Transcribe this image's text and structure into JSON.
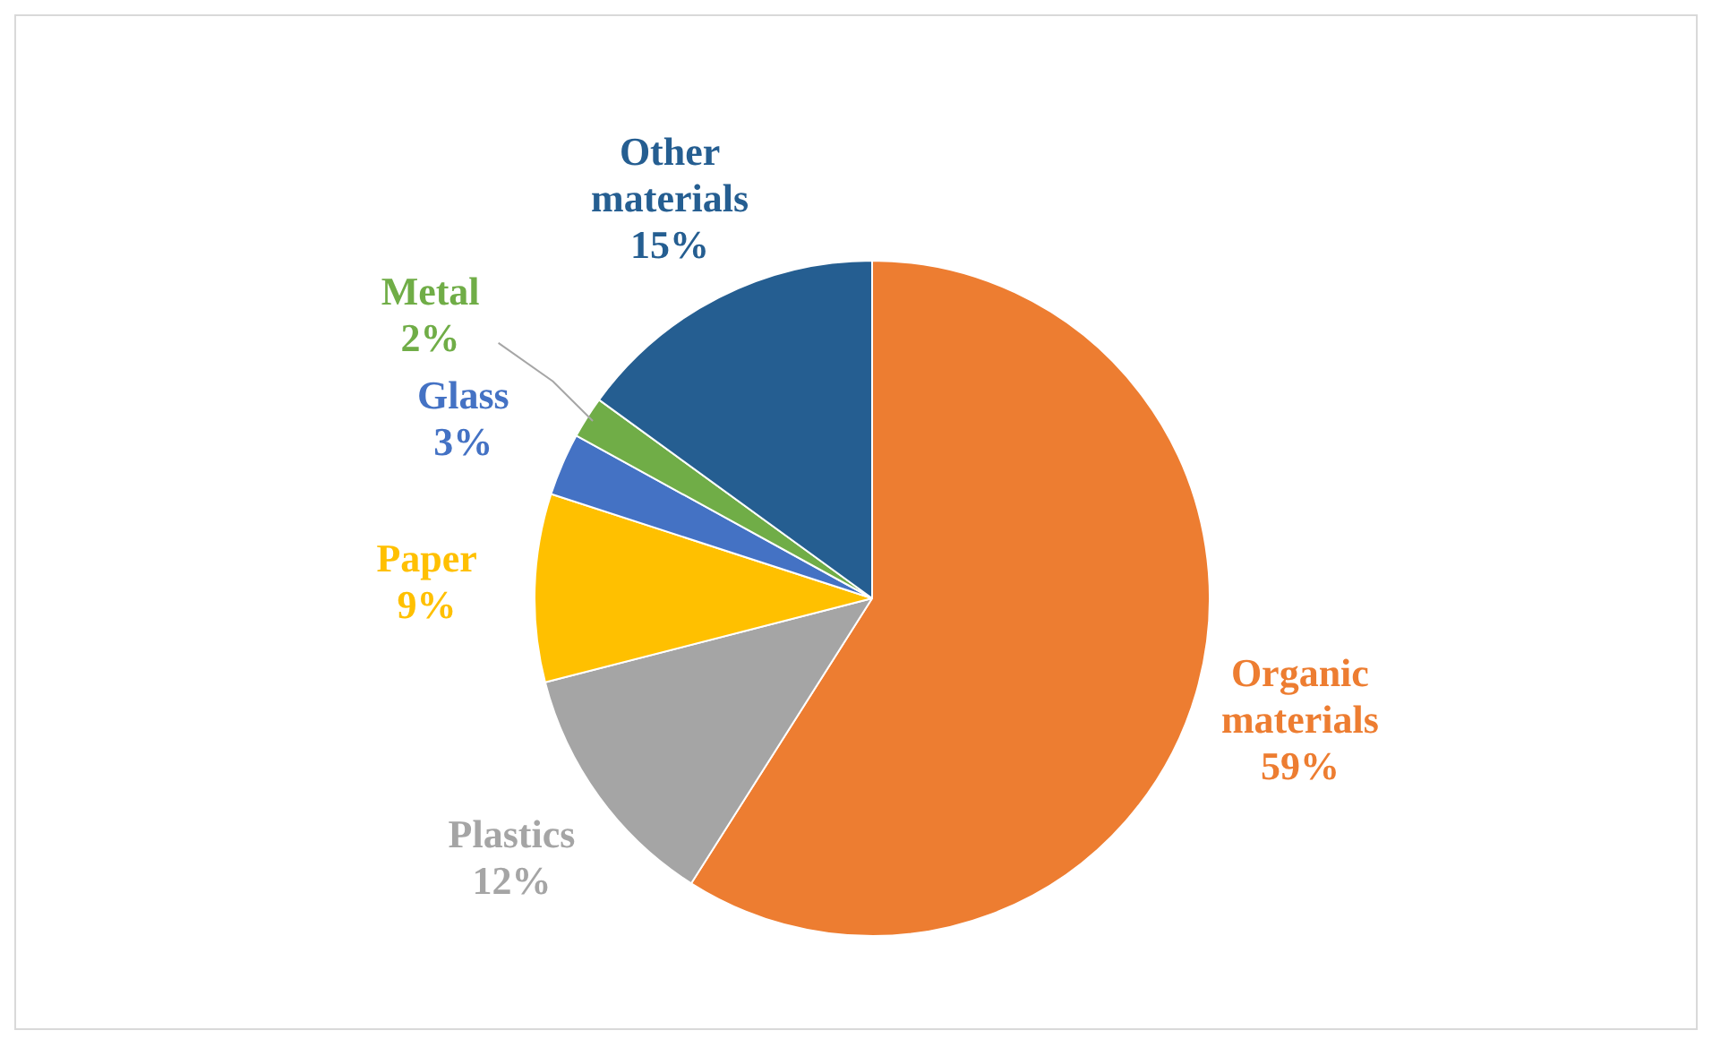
{
  "chart_data": {
    "type": "pie",
    "categories": [
      "Organic materials",
      "Plastics",
      "Paper",
      "Glass",
      "Metal",
      "Other materials"
    ],
    "values": [
      59,
      12,
      9,
      3,
      2,
      15
    ],
    "value_labels": [
      "59%",
      "12%",
      "9%",
      "3%",
      "2%",
      "15%"
    ],
    "colors": [
      "#ed7d31",
      "#a5a5a5",
      "#ffc000",
      "#4472c4",
      "#70ad47",
      "#255e91"
    ],
    "legend": false
  }
}
